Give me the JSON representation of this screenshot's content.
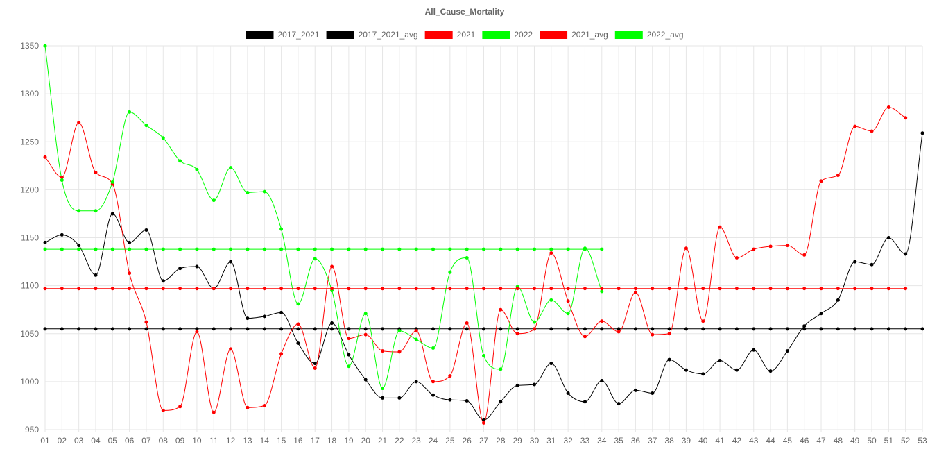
{
  "chart_data": {
    "type": "line",
    "title": "All_Cause_Mortality",
    "xlabel": "",
    "ylabel": "",
    "ylim": [
      950,
      1350
    ],
    "y_ticks": [
      950,
      1000,
      1050,
      1100,
      1150,
      1200,
      1250,
      1300,
      1350
    ],
    "categories": [
      "01",
      "02",
      "03",
      "04",
      "05",
      "06",
      "07",
      "08",
      "09",
      "10",
      "11",
      "12",
      "13",
      "14",
      "15",
      "16",
      "17",
      "18",
      "19",
      "20",
      "21",
      "22",
      "23",
      "24",
      "25",
      "26",
      "27",
      "28",
      "29",
      "30",
      "31",
      "32",
      "33",
      "34",
      "35",
      "36",
      "37",
      "38",
      "39",
      "40",
      "41",
      "42",
      "43",
      "44",
      "45",
      "46",
      "47",
      "48",
      "49",
      "50",
      "51",
      "52",
      "53"
    ],
    "grid": true,
    "legend_position": "top",
    "series": [
      {
        "name": "2017_2021",
        "color": "#000000",
        "values": [
          1145,
          1153,
          1142,
          1111,
          1175,
          1145,
          1158,
          1105,
          1118,
          1120,
          1097,
          1125,
          1066,
          1068,
          1072,
          1040,
          1019,
          1061,
          1028,
          1002,
          983,
          983,
          1000,
          986,
          981,
          980,
          960,
          979,
          996,
          997,
          1019,
          988,
          979,
          1001,
          977,
          991,
          988,
          1023,
          1012,
          1008,
          1022,
          1012,
          1033,
          1011,
          1032,
          1058,
          1071,
          1085,
          1125,
          1122,
          1150,
          1133,
          1259
        ]
      },
      {
        "name": "2017_2021_avg",
        "color": "#000000",
        "values": [
          1055,
          1055,
          1055,
          1055,
          1055,
          1055,
          1055,
          1055,
          1055,
          1055,
          1055,
          1055,
          1055,
          1055,
          1055,
          1055,
          1055,
          1055,
          1055,
          1055,
          1055,
          1055,
          1055,
          1055,
          1055,
          1055,
          1055,
          1055,
          1055,
          1055,
          1055,
          1055,
          1055,
          1055,
          1055,
          1055,
          1055,
          1055,
          1055,
          1055,
          1055,
          1055,
          1055,
          1055,
          1055,
          1055,
          1055,
          1055,
          1055,
          1055,
          1055,
          1055,
          1055
        ]
      },
      {
        "name": "2021",
        "color": "#ff0000",
        "values": [
          1234,
          1213,
          1270,
          1218,
          1206,
          1113,
          1062,
          970,
          974,
          1052,
          968,
          1034,
          973,
          975,
          1029,
          1060,
          1014,
          1120,
          1045,
          1049,
          1032,
          1031,
          1053,
          1000,
          1006,
          1061,
          957,
          1075,
          1050,
          1055,
          1134,
          1084,
          1047,
          1063,
          1052,
          1093,
          1049,
          1050,
          1139,
          1063,
          1161,
          1129,
          1138,
          1141,
          1142,
          1132,
          1209,
          1215,
          1266,
          1261,
          1286,
          1275,
          null
        ]
      },
      {
        "name": "2022",
        "color": "#00ff00",
        "values": [
          1350,
          1210,
          1178,
          1178,
          1208,
          1281,
          1267,
          1254,
          1230,
          1221,
          1189,
          1223,
          1197,
          1198,
          1159,
          1081,
          1128,
          1095,
          1016,
          1071,
          993,
          1053,
          1044,
          1035,
          1114,
          1129,
          1027,
          1013,
          1099,
          1062,
          1085,
          1071,
          1139,
          1094,
          null,
          null,
          null,
          null,
          null,
          null,
          null,
          null,
          null,
          null,
          null,
          null,
          null,
          null,
          null,
          null,
          null,
          null,
          null
        ]
      },
      {
        "name": "2021_avg",
        "color": "#ff0000",
        "values": [
          1097,
          1097,
          1097,
          1097,
          1097,
          1097,
          1097,
          1097,
          1097,
          1097,
          1097,
          1097,
          1097,
          1097,
          1097,
          1097,
          1097,
          1097,
          1097,
          1097,
          1097,
          1097,
          1097,
          1097,
          1097,
          1097,
          1097,
          1097,
          1097,
          1097,
          1097,
          1097,
          1097,
          1097,
          1097,
          1097,
          1097,
          1097,
          1097,
          1097,
          1097,
          1097,
          1097,
          1097,
          1097,
          1097,
          1097,
          1097,
          1097,
          1097,
          1097,
          1097,
          null
        ]
      },
      {
        "name": "2022_avg",
        "color": "#00ff00",
        "values": [
          1138,
          1138,
          1138,
          1138,
          1138,
          1138,
          1138,
          1138,
          1138,
          1138,
          1138,
          1138,
          1138,
          1138,
          1138,
          1138,
          1138,
          1138,
          1138,
          1138,
          1138,
          1138,
          1138,
          1138,
          1138,
          1138,
          1138,
          1138,
          1138,
          1138,
          1138,
          1138,
          1138,
          1138,
          null,
          null,
          null,
          null,
          null,
          null,
          null,
          null,
          null,
          null,
          null,
          null,
          null,
          null,
          null,
          null,
          null,
          null,
          null
        ]
      }
    ]
  }
}
